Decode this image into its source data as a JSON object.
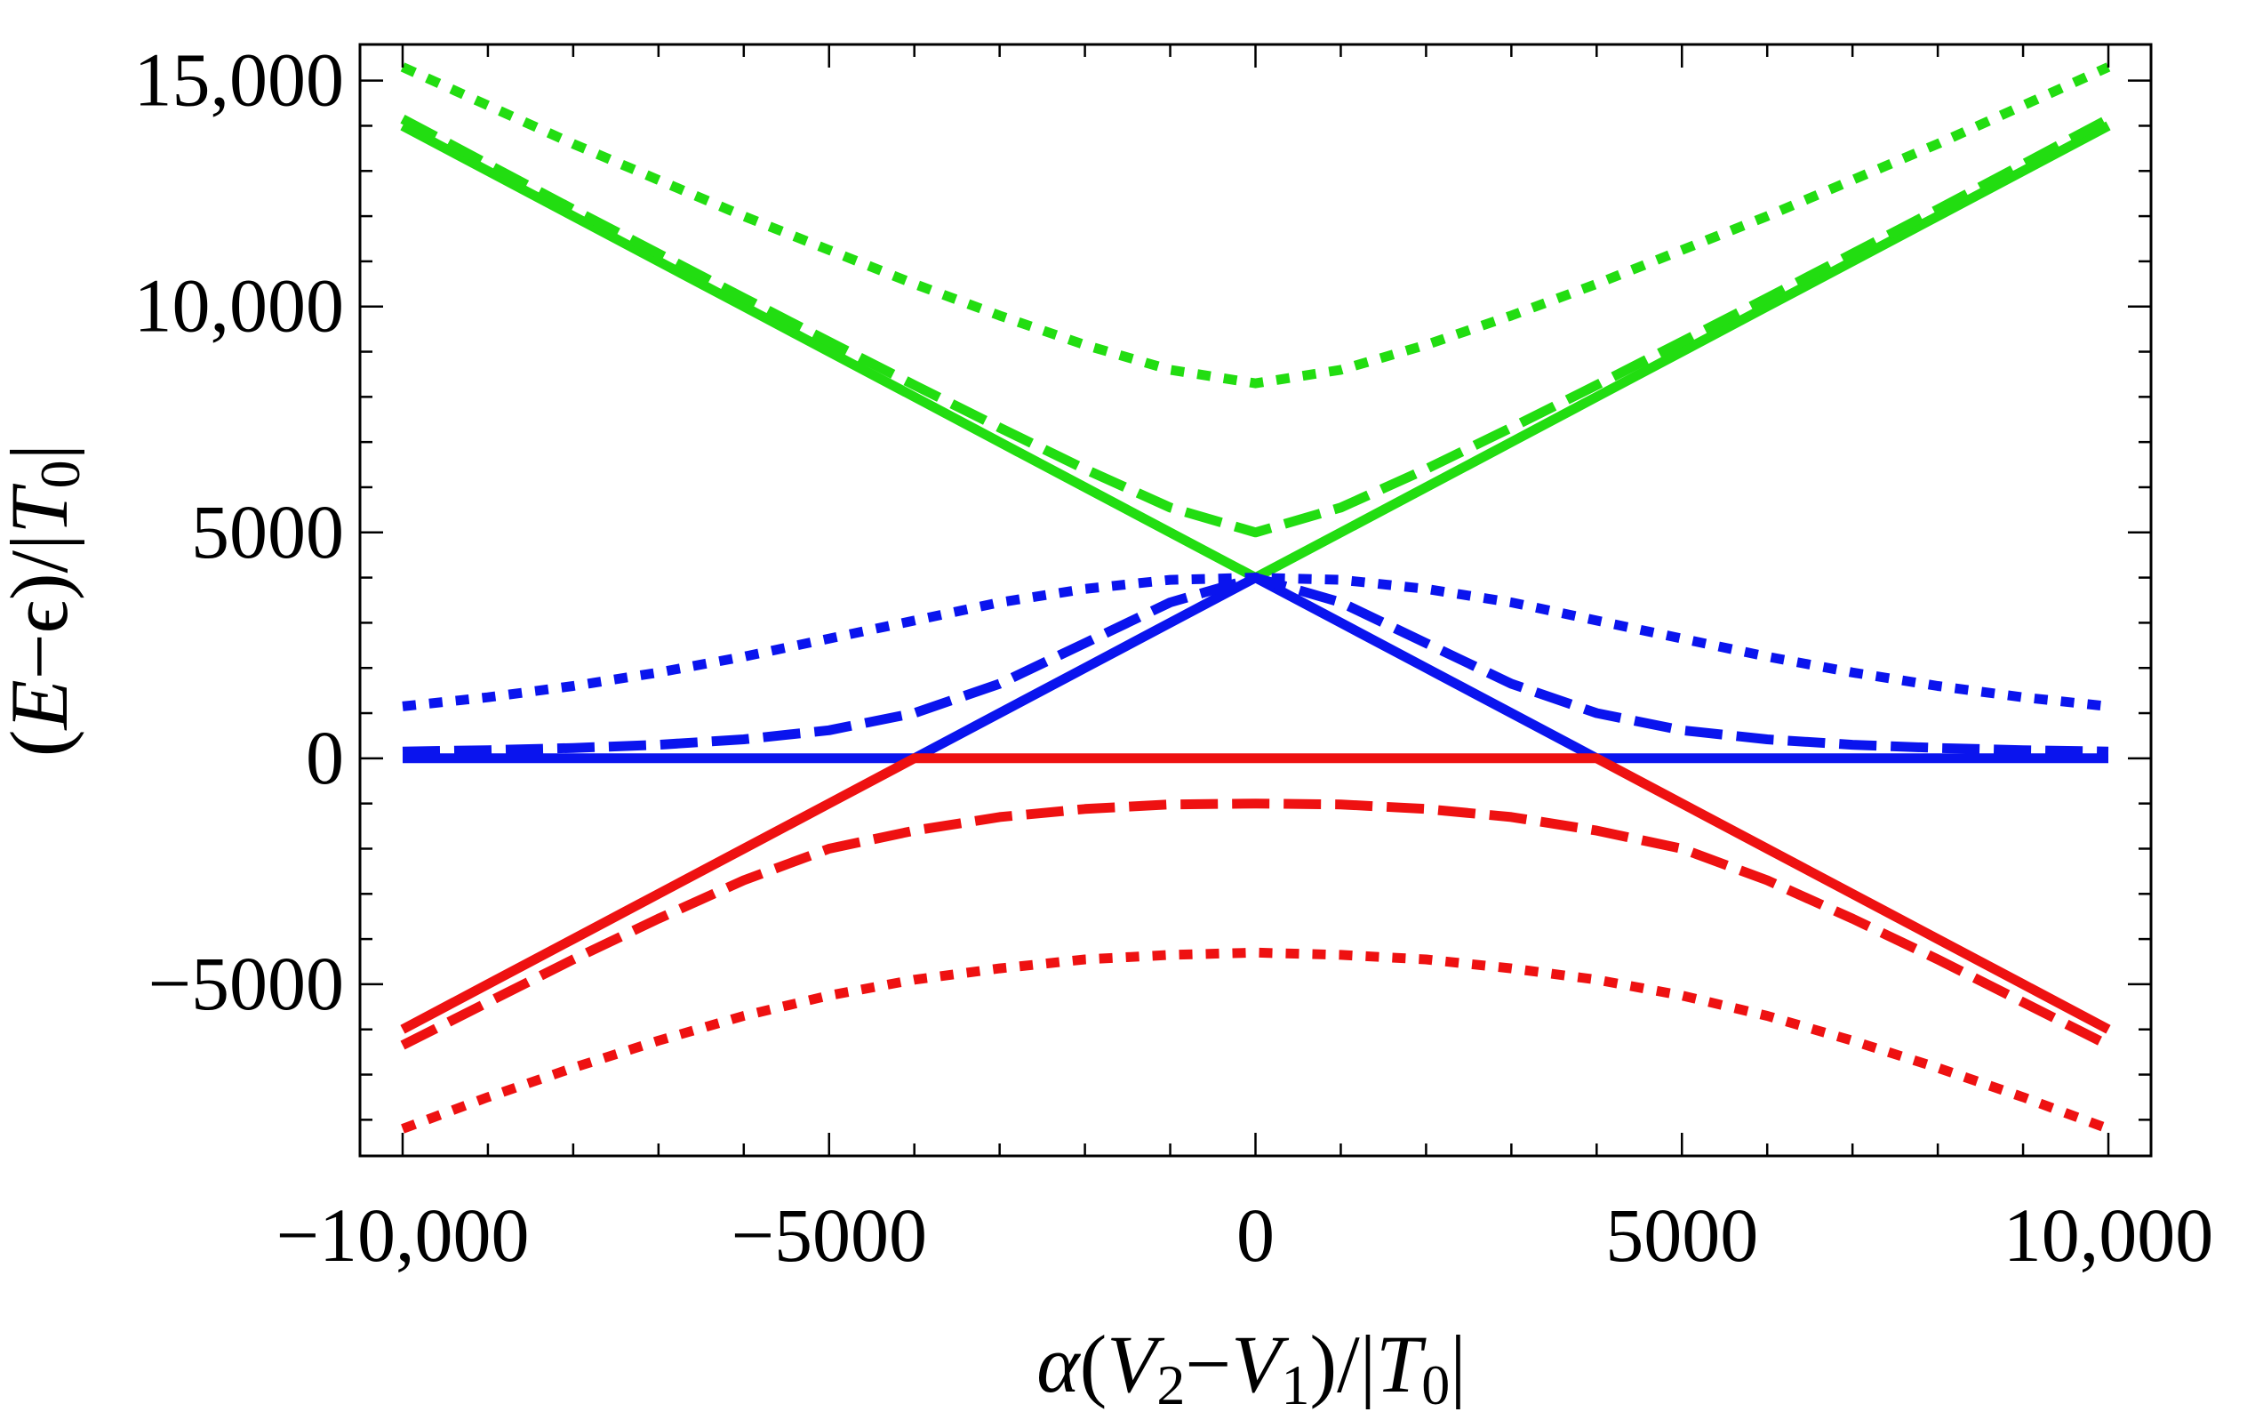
{
  "chart_data": {
    "type": "line",
    "title": "",
    "xlabel": "α(V2−V1)/|T0|",
    "ylabel": "(E−ϵ)/|T0|",
    "xlabel_parts": [
      "α",
      "(",
      "V",
      "2",
      "−",
      "V",
      "1",
      ")/|",
      "T",
      "0",
      "|"
    ],
    "ylabel_parts": [
      "(",
      "E",
      "−ϵ",
      ")/|",
      "T",
      "0",
      "|"
    ],
    "xlim": [
      -10500,
      10500
    ],
    "ylim": [
      -8800,
      15800
    ],
    "xticks": [
      {
        "value": -10000,
        "label": "−10,000"
      },
      {
        "value": -5000,
        "label": "−5000"
      },
      {
        "value": 0,
        "label": "0"
      },
      {
        "value": 5000,
        "label": "5000"
      },
      {
        "value": 10000,
        "label": "10,000"
      }
    ],
    "yticks": [
      {
        "value": -5000,
        "label": "−5000"
      },
      {
        "value": 0,
        "label": "0"
      },
      {
        "value": 5000,
        "label": "5000"
      },
      {
        "value": 10000,
        "label": "10,000"
      },
      {
        "value": 15000,
        "label": "15,000"
      }
    ],
    "x_minor_step": 1000,
    "y_minor_step": 1000,
    "grid": false,
    "x": [
      -10000,
      -9000,
      -8000,
      -7000,
      -6000,
      -5000,
      -4000,
      -3000,
      -2000,
      -1000,
      0,
      1000,
      2000,
      3000,
      4000,
      5000,
      6000,
      7000,
      8000,
      9000,
      10000
    ],
    "series": [
      {
        "name": "green solid",
        "color": "#22dd11",
        "dash": "solid",
        "values": [
          14000,
          13000,
          12000,
          11000,
          10000,
          9000,
          8000,
          7000,
          6000,
          5000,
          4000,
          5000,
          6000,
          7000,
          8000,
          9000,
          10000,
          11000,
          12000,
          13000,
          14000
        ]
      },
      {
        "name": "green dashed",
        "color": "#22dd11",
        "dash": "dashed",
        "values": [
          14150,
          13150,
          12150,
          11170,
          10190,
          9220,
          8260,
          7320,
          6400,
          5550,
          5000,
          5550,
          6400,
          7320,
          8260,
          9220,
          10190,
          11170,
          12150,
          13150,
          14150
        ]
      },
      {
        "name": "green dotted",
        "color": "#22dd11",
        "dash": "dotted",
        "values": [
          15300,
          14450,
          13600,
          12800,
          12000,
          11250,
          10500,
          9800,
          9150,
          8600,
          8300,
          8600,
          9150,
          9800,
          10500,
          11250,
          12000,
          12800,
          13600,
          14450,
          15300
        ]
      },
      {
        "name": "blue solid",
        "color": "#0a14ee",
        "dash": "solid",
        "values": [
          0,
          0,
          0,
          0,
          0,
          0,
          0,
          1000,
          2000,
          3000,
          4000,
          3000,
          2000,
          1000,
          0,
          0,
          0,
          0,
          0,
          0,
          0
        ]
      },
      {
        "name": "blue dashed",
        "color": "#0a14ee",
        "dash": "dashed",
        "values": [
          150,
          180,
          230,
          300,
          420,
          620,
          1000,
          1650,
          2550,
          3450,
          4000,
          3450,
          2550,
          1650,
          1000,
          620,
          420,
          300,
          230,
          180,
          150
        ]
      },
      {
        "name": "blue dotted",
        "color": "#0a14ee",
        "dash": "dotted",
        "values": [
          1150,
          1350,
          1600,
          1900,
          2250,
          2650,
          3050,
          3450,
          3750,
          3950,
          4000,
          3950,
          3750,
          3450,
          3050,
          2650,
          2250,
          1900,
          1600,
          1350,
          1150
        ]
      },
      {
        "name": "red solid",
        "color": "#ee1111",
        "dash": "solid",
        "values": [
          -6000,
          -5000,
          -4000,
          -3000,
          -2000,
          -1000,
          0,
          0,
          0,
          0,
          0,
          0,
          0,
          0,
          0,
          -1000,
          -2000,
          -3000,
          -4000,
          -5000,
          -6000
        ]
      },
      {
        "name": "red dashed",
        "color": "#ee1111",
        "dash": "dashed",
        "values": [
          -6350,
          -5400,
          -4450,
          -3550,
          -2700,
          -2000,
          -1600,
          -1300,
          -1120,
          -1020,
          -1000,
          -1020,
          -1120,
          -1300,
          -1600,
          -2000,
          -2700,
          -3550,
          -4450,
          -5400,
          -6350
        ]
      },
      {
        "name": "red dotted",
        "color": "#ee1111",
        "dash": "dotted",
        "values": [
          -8200,
          -7500,
          -6850,
          -6250,
          -5700,
          -5250,
          -4900,
          -4650,
          -4450,
          -4350,
          -4300,
          -4350,
          -4450,
          -4650,
          -4900,
          -5250,
          -5700,
          -6250,
          -6850,
          -7500,
          -8200
        ]
      }
    ]
  }
}
